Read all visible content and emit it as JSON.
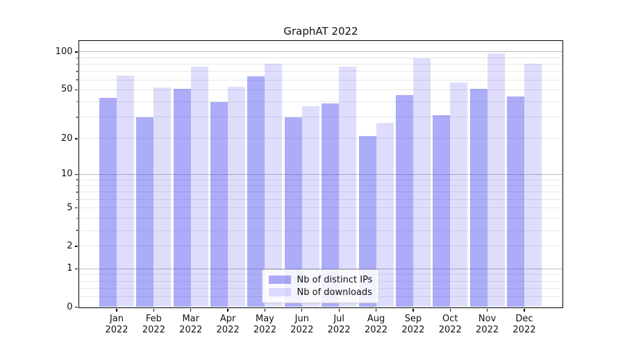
{
  "title": "GraphAT 2022",
  "chart_data": {
    "type": "bar",
    "title": "GraphAT 2022",
    "xlabel": "",
    "ylabel": "",
    "yscale": "log1p-symlog",
    "ylim": [
      0,
      123
    ],
    "yticks": [
      0,
      1,
      2,
      5,
      10,
      20,
      50,
      100
    ],
    "grid": "on",
    "major_gridlines": [
      1,
      10,
      100
    ],
    "minor_gridlines": [
      0.2,
      0.4,
      0.6,
      0.8,
      2,
      3,
      4,
      5,
      6,
      7,
      8,
      9,
      20,
      30,
      40,
      50,
      60,
      70,
      80,
      90
    ],
    "categories": [
      "Jan",
      "Feb",
      "Mar",
      "Apr",
      "May",
      "Jun",
      "Jul",
      "Aug",
      "Sep",
      "Oct",
      "Nov",
      "Dec"
    ],
    "category_year": "2022",
    "legend_position": "lower center",
    "series": [
      {
        "key": "distinct-ips",
        "name": "Nb of distinct IPs",
        "color": "rgba(70,70,240,0.45)",
        "values": [
          43,
          30,
          51,
          40,
          64,
          30,
          39,
          21,
          45,
          31,
          51,
          44
        ]
      },
      {
        "key": "downloads",
        "name": "Nb of downloads",
        "color": "rgba(70,70,240,0.18)",
        "values": [
          65,
          52,
          76,
          53,
          80,
          37,
          76,
          27,
          89,
          57,
          97,
          80
        ]
      }
    ]
  }
}
